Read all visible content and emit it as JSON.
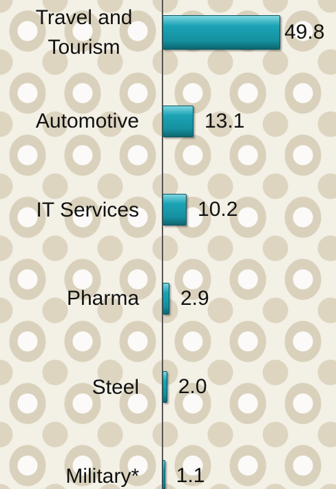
{
  "chart_data": {
    "type": "bar",
    "orientation": "horizontal",
    "categories": [
      "Travel and Tourism",
      "Automotive",
      "IT Services",
      "Pharma",
      "Steel",
      "Military*"
    ],
    "values": [
      49.8,
      13.1,
      10.2,
      2.9,
      2.0,
      1.1
    ],
    "value_labels": [
      "49.8",
      "13.1",
      "10.2",
      "2.9",
      "2.0",
      "1.1"
    ],
    "color": "#1ba3b5"
  }
}
